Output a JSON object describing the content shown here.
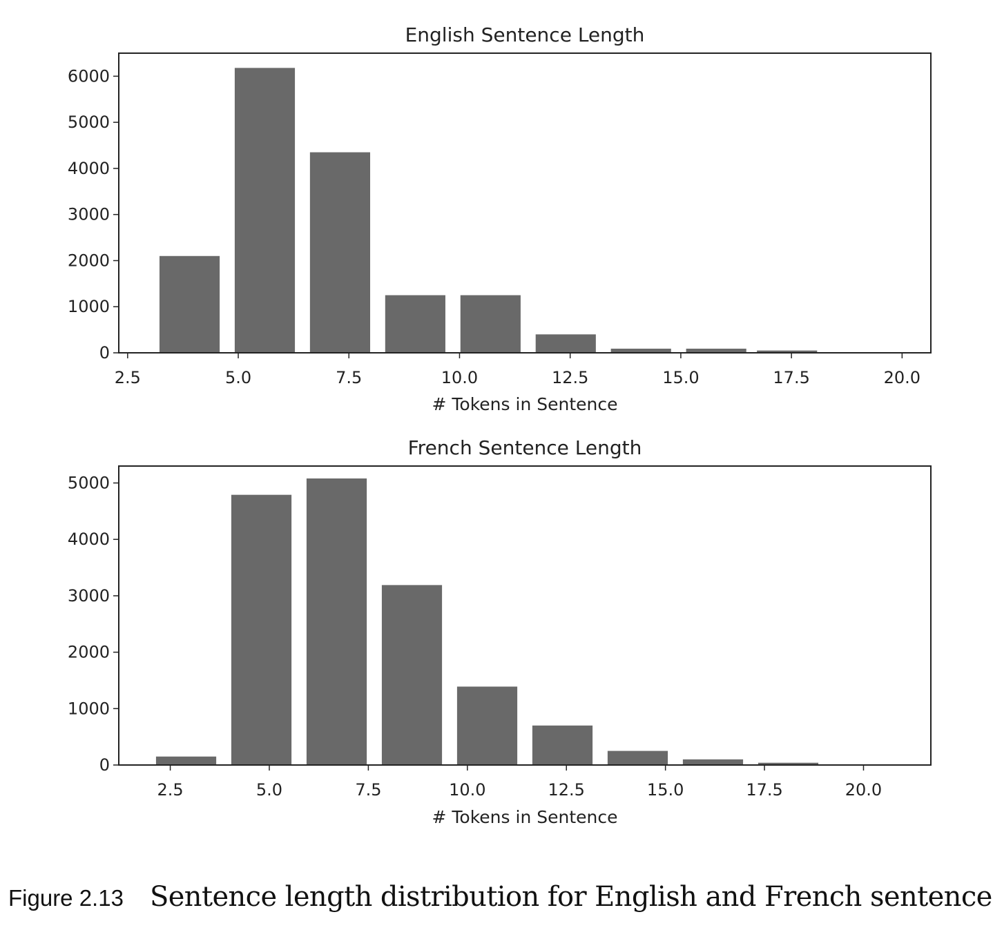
{
  "chart_data": [
    {
      "type": "bar",
      "title": "English Sentence Length",
      "xlabel": "# Tokens in Sentence",
      "ylabel": "",
      "bar_color": "#696969",
      "x": [
        3.9,
        5.6,
        7.3,
        9.0,
        10.7,
        12.4,
        14.1,
        15.8,
        17.4
      ],
      "values": [
        2100,
        6180,
        4350,
        1250,
        1250,
        400,
        90,
        90,
        50
      ],
      "bar_width": 1.36,
      "xlim": [
        2.3,
        20.65
      ],
      "ylim": [
        0,
        6500
      ],
      "xticks": [
        2.5,
        5.0,
        7.5,
        10.0,
        12.5,
        15.0,
        17.5,
        20.0
      ],
      "xtick_labels": [
        "2.5",
        "5.0",
        "7.5",
        "10.0",
        "12.5",
        "15.0",
        "17.5",
        "20.0"
      ],
      "yticks": [
        0,
        1000,
        2000,
        3000,
        4000,
        5000,
        6000
      ],
      "ytick_labels": [
        "0",
        "1000",
        "2000",
        "3000",
        "4000",
        "5000",
        "6000"
      ],
      "grid": false,
      "legend": null
    },
    {
      "type": "bar",
      "title": "French Sentence Length",
      "xlabel": "# Tokens in Sentence",
      "ylabel": "",
      "bar_color": "#696969",
      "x": [
        2.9,
        4.8,
        6.7,
        8.6,
        10.5,
        12.4,
        14.3,
        16.2,
        18.1
      ],
      "values": [
        150,
        4790,
        5080,
        3190,
        1390,
        700,
        250,
        100,
        40
      ],
      "bar_width": 1.52,
      "xlim": [
        1.2,
        21.7
      ],
      "ylim": [
        0,
        5300
      ],
      "xticks": [
        2.5,
        5.0,
        7.5,
        10.0,
        12.5,
        15.0,
        17.5,
        20.0
      ],
      "xtick_labels": [
        "2.5",
        "5.0",
        "7.5",
        "10.0",
        "12.5",
        "15.0",
        "17.5",
        "20.0"
      ],
      "yticks": [
        0,
        1000,
        2000,
        3000,
        4000,
        5000
      ],
      "ytick_labels": [
        "0",
        "1000",
        "2000",
        "3000",
        "4000",
        "5000"
      ],
      "grid": false,
      "legend": null
    }
  ],
  "caption": {
    "label": "Figure 2.13",
    "text": "Sentence length distribution for English and French sentences."
  }
}
